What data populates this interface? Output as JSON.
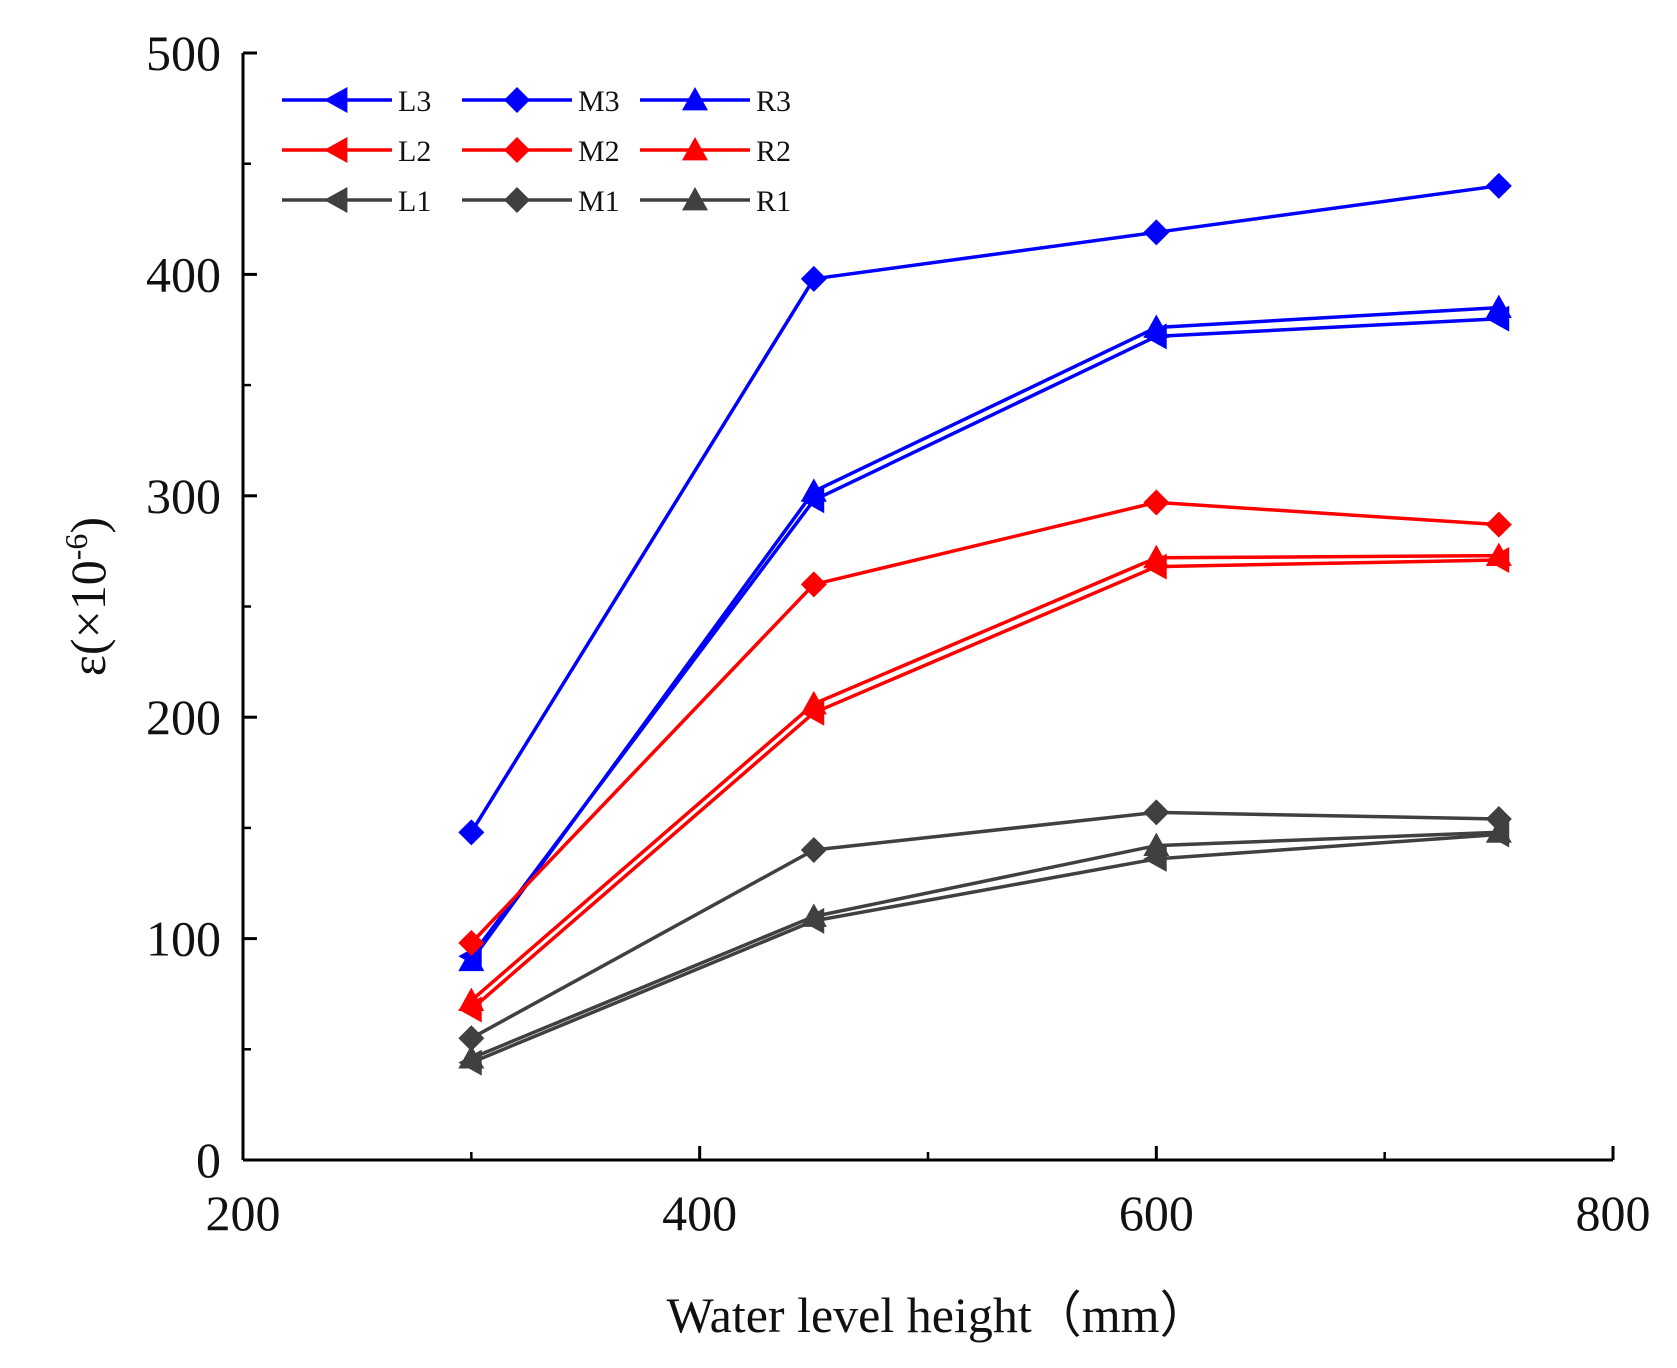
{
  "chart_data": {
    "type": "line",
    "title": "",
    "xlabel": "Water level height（mm）",
    "ylabel_main": "ε(×10",
    "ylabel_sup": "-6",
    "ylabel_close": ")",
    "xlim": [
      200,
      800
    ],
    "ylim": [
      0,
      500
    ],
    "x_ticks": [
      200,
      400,
      600,
      800
    ],
    "y_ticks": [
      0,
      100,
      200,
      300,
      400,
      500
    ],
    "x_tick_labels": [
      "200",
      "400",
      "600",
      "800"
    ],
    "y_tick_labels": [
      "0",
      "100",
      "200",
      "300",
      "400",
      "500"
    ],
    "x": [
      300,
      450,
      600,
      750
    ],
    "legend_position": "top-left",
    "series": [
      {
        "name": "L3",
        "color": "#0000ff",
        "marker": "triangle-left",
        "values": [
          92,
          298,
          372,
          380
        ]
      },
      {
        "name": "M3",
        "color": "#0000ff",
        "marker": "diamond",
        "values": [
          148,
          398,
          419,
          440
        ]
      },
      {
        "name": "R3",
        "color": "#0000ff",
        "marker": "triangle-up",
        "values": [
          90,
          302,
          376,
          385
        ]
      },
      {
        "name": "L2",
        "color": "#ff0000",
        "marker": "triangle-left",
        "values": [
          68,
          202,
          268,
          271
        ]
      },
      {
        "name": "M2",
        "color": "#ff0000",
        "marker": "diamond",
        "values": [
          98,
          260,
          297,
          287
        ]
      },
      {
        "name": "R2",
        "color": "#ff0000",
        "marker": "triangle-up",
        "values": [
          72,
          206,
          272,
          273
        ]
      },
      {
        "name": "L1",
        "color": "#404040",
        "marker": "triangle-left",
        "values": [
          44,
          108,
          136,
          147
        ]
      },
      {
        "name": "M1",
        "color": "#404040",
        "marker": "diamond",
        "values": [
          55,
          140,
          157,
          154
        ]
      },
      {
        "name": "R1",
        "color": "#404040",
        "marker": "triangle-up",
        "values": [
          46,
          110,
          142,
          148
        ]
      }
    ]
  }
}
